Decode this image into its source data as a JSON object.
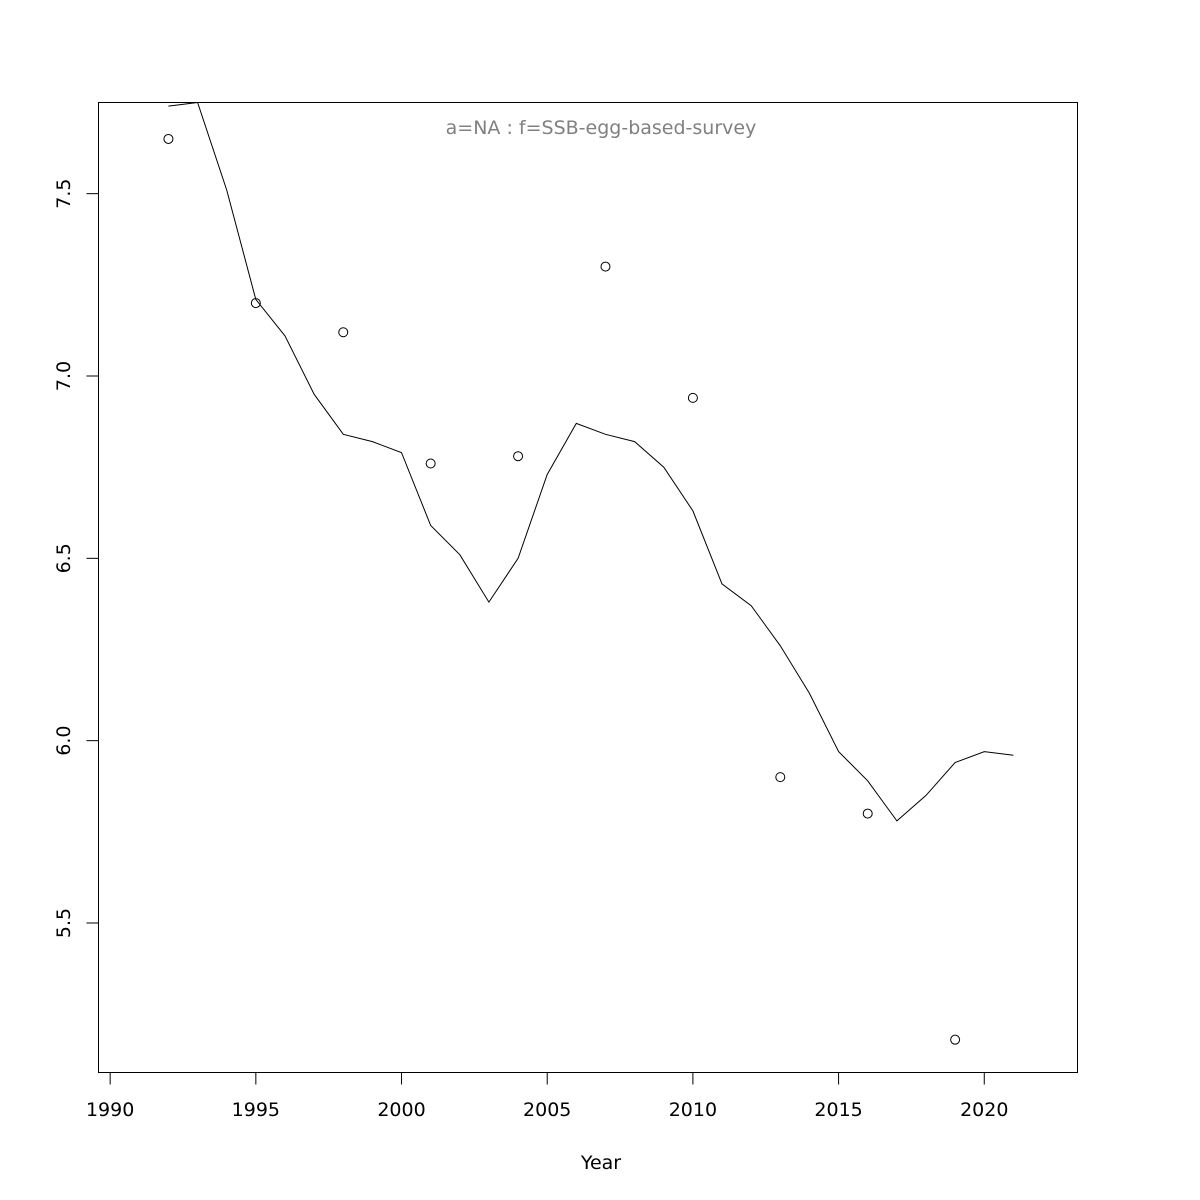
{
  "chart_data": {
    "type": "scatter",
    "title": "a=NA  :  f=SSB-egg-based-survey",
    "xlabel": "Year",
    "ylabel": "",
    "xlim": [
      1989.6,
      2023.2
    ],
    "ylim": [
      5.09,
      7.75
    ],
    "x_ticks": [
      1990,
      1995,
      2000,
      2005,
      2010,
      2015,
      2020
    ],
    "y_ticks": [
      5.5,
      6.0,
      6.5,
      7.0,
      7.5
    ],
    "x_tick_labels": [
      "1990",
      "1995",
      "2000",
      "2005",
      "2010",
      "2015",
      "2020"
    ],
    "y_tick_labels": [
      "5.5",
      "6.0",
      "6.5",
      "7.0",
      "7.5"
    ],
    "grid": false,
    "series": [
      {
        "kind": "points",
        "x": [
          1992,
          1995,
          1998,
          2001,
          2004,
          2007,
          2010,
          2013,
          2016,
          2019
        ],
        "y": [
          7.65,
          7.2,
          7.12,
          6.76,
          6.78,
          7.3,
          6.94,
          5.9,
          5.8,
          5.18
        ]
      },
      {
        "kind": "line",
        "x": [
          1992,
          1993,
          1994,
          1995,
          1996,
          1997,
          1998,
          1999,
          2000,
          2001,
          2002,
          2003,
          2004,
          2005,
          2006,
          2007,
          2008,
          2009,
          2010,
          2011,
          2012,
          2013,
          2014,
          2015,
          2016,
          2017,
          2018,
          2019,
          2020,
          2021
        ],
        "y": [
          7.74,
          7.75,
          7.51,
          7.21,
          7.11,
          6.95,
          6.84,
          6.82,
          6.79,
          6.59,
          6.51,
          6.38,
          6.5,
          6.73,
          6.87,
          6.84,
          6.82,
          6.75,
          6.63,
          6.43,
          6.37,
          6.26,
          6.13,
          5.97,
          5.89,
          5.78,
          5.85,
          5.94,
          5.97,
          5.96
        ]
      }
    ]
  }
}
